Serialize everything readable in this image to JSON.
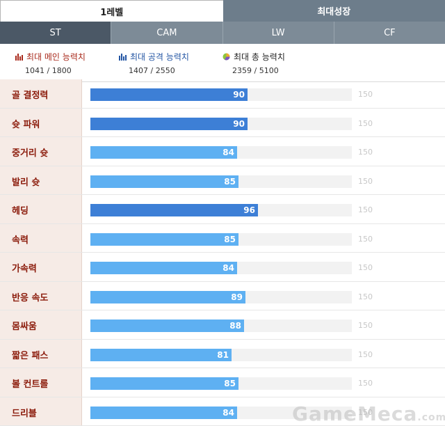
{
  "top_tabs": [
    {
      "label": "1레벨",
      "active": true
    },
    {
      "label": "최대성장",
      "active": false
    }
  ],
  "position_tabs": [
    {
      "label": "ST",
      "active": true
    },
    {
      "label": "CAM",
      "active": false
    },
    {
      "label": "LW",
      "active": false
    },
    {
      "label": "CF",
      "active": false
    }
  ],
  "summary": {
    "main": {
      "label": "최대 메인 능력치",
      "value": "1041 / 1800",
      "icon": "bar-chart-icon",
      "color": "#a8281a"
    },
    "attack": {
      "label": "최대 공격 능력치",
      "value": "1407 / 2550",
      "icon": "bar-chart-icon",
      "color": "#2355a3"
    },
    "total": {
      "label": "최대 총 능력치",
      "value": "2359 / 5100",
      "icon": "pie-chart-icon",
      "color": "#222222"
    }
  },
  "stats": [
    {
      "name": "골 결정력",
      "value": 90,
      "max": 150,
      "highlight": true
    },
    {
      "name": "슛 파워",
      "value": 90,
      "max": 150,
      "highlight": true
    },
    {
      "name": "중거리 슛",
      "value": 84,
      "max": 150,
      "highlight": false
    },
    {
      "name": "발리 슛",
      "value": 85,
      "max": 150,
      "highlight": false
    },
    {
      "name": "헤딩",
      "value": 96,
      "max": 150,
      "highlight": true
    },
    {
      "name": "속력",
      "value": 85,
      "max": 150,
      "highlight": false
    },
    {
      "name": "가속력",
      "value": 84,
      "max": 150,
      "highlight": false
    },
    {
      "name": "반응 속도",
      "value": 89,
      "max": 150,
      "highlight": false
    },
    {
      "name": "몸싸움",
      "value": 88,
      "max": 150,
      "highlight": false
    },
    {
      "name": "짧은 패스",
      "value": 81,
      "max": 150,
      "highlight": false
    },
    {
      "name": "볼 컨트롤",
      "value": 85,
      "max": 150,
      "highlight": false
    },
    {
      "name": "드리블",
      "value": 84,
      "max": 150,
      "highlight": false
    }
  ],
  "colors": {
    "bar_highlight": "#3d7fd6",
    "bar_normal": "#5eb0f2",
    "stat_label": "#8b1b0b"
  },
  "watermark": {
    "text": "GameMeca",
    "suffix": ".com"
  }
}
